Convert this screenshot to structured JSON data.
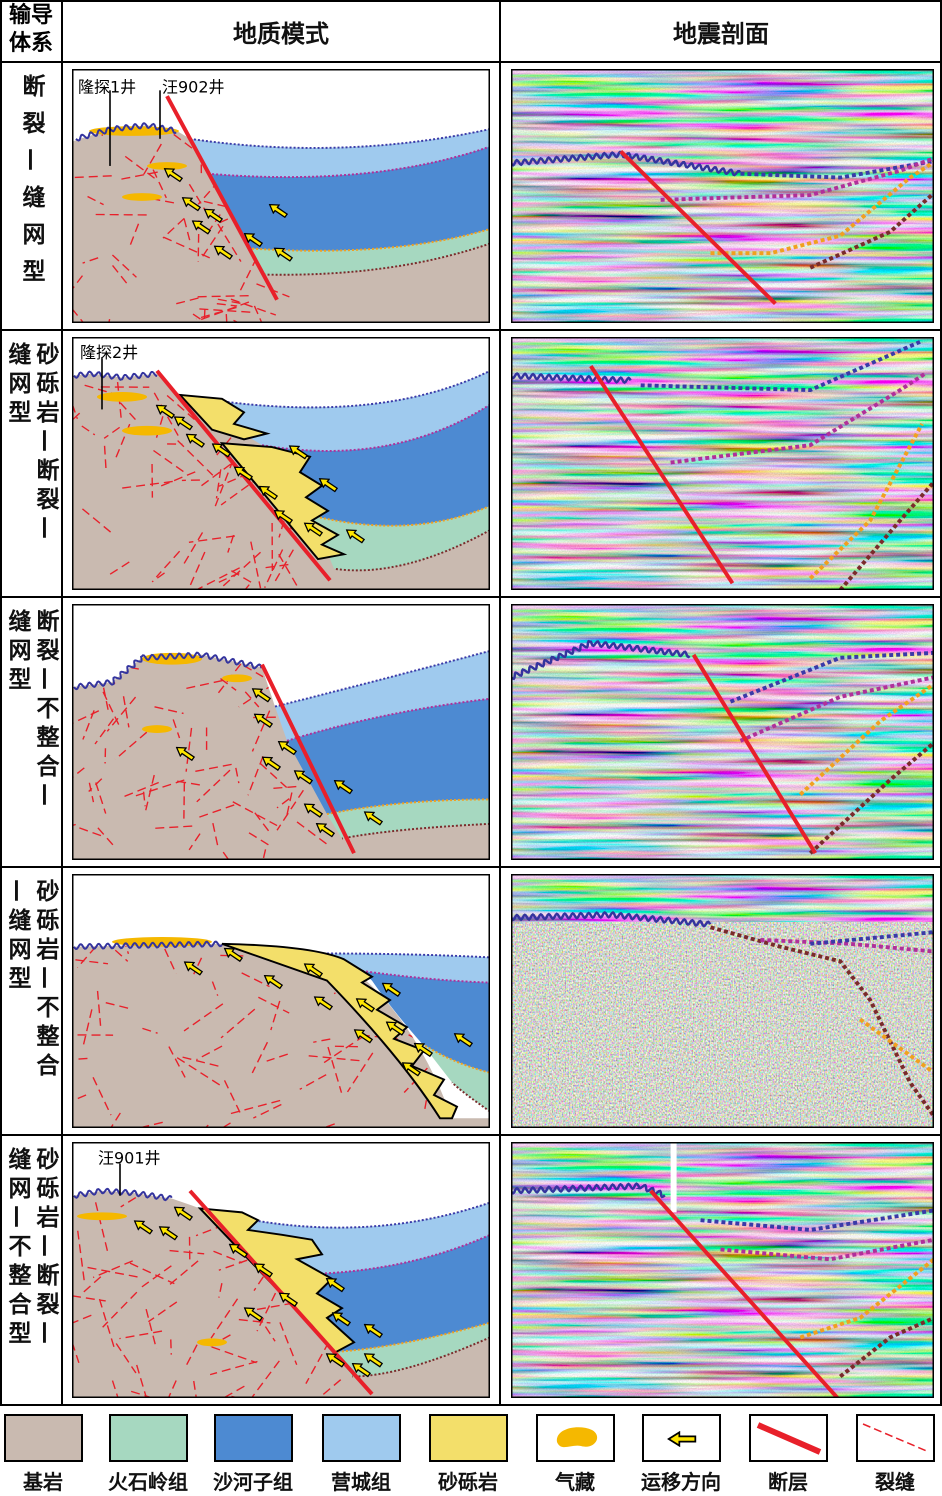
{
  "header": {
    "system": [
      "输导",
      "体系"
    ],
    "geology": "地质模式",
    "seismic": "地震剖面"
  },
  "rows": [
    {
      "label": [
        "断裂—缝网型"
      ],
      "wells": [
        "隆探1井",
        "汪902井"
      ]
    },
    {
      "label": [
        "砂砾岩—断裂—",
        "缝网型"
      ],
      "wells": [
        "隆探2井"
      ]
    },
    {
      "label": [
        "断裂—不整合—",
        "缝网型"
      ]
    },
    {
      "label": [
        "砂砾岩—不整合",
        "—缝网型"
      ]
    },
    {
      "label": [
        "砂砾岩—断裂—",
        "缝网—不整合型"
      ],
      "wells": [
        "汪901井"
      ]
    }
  ],
  "legend": [
    "基岩",
    "火石岭组",
    "沙河子组",
    "营城组",
    "砂砾岩",
    "气藏",
    "运移方向",
    "断层",
    "裂缝"
  ]
}
